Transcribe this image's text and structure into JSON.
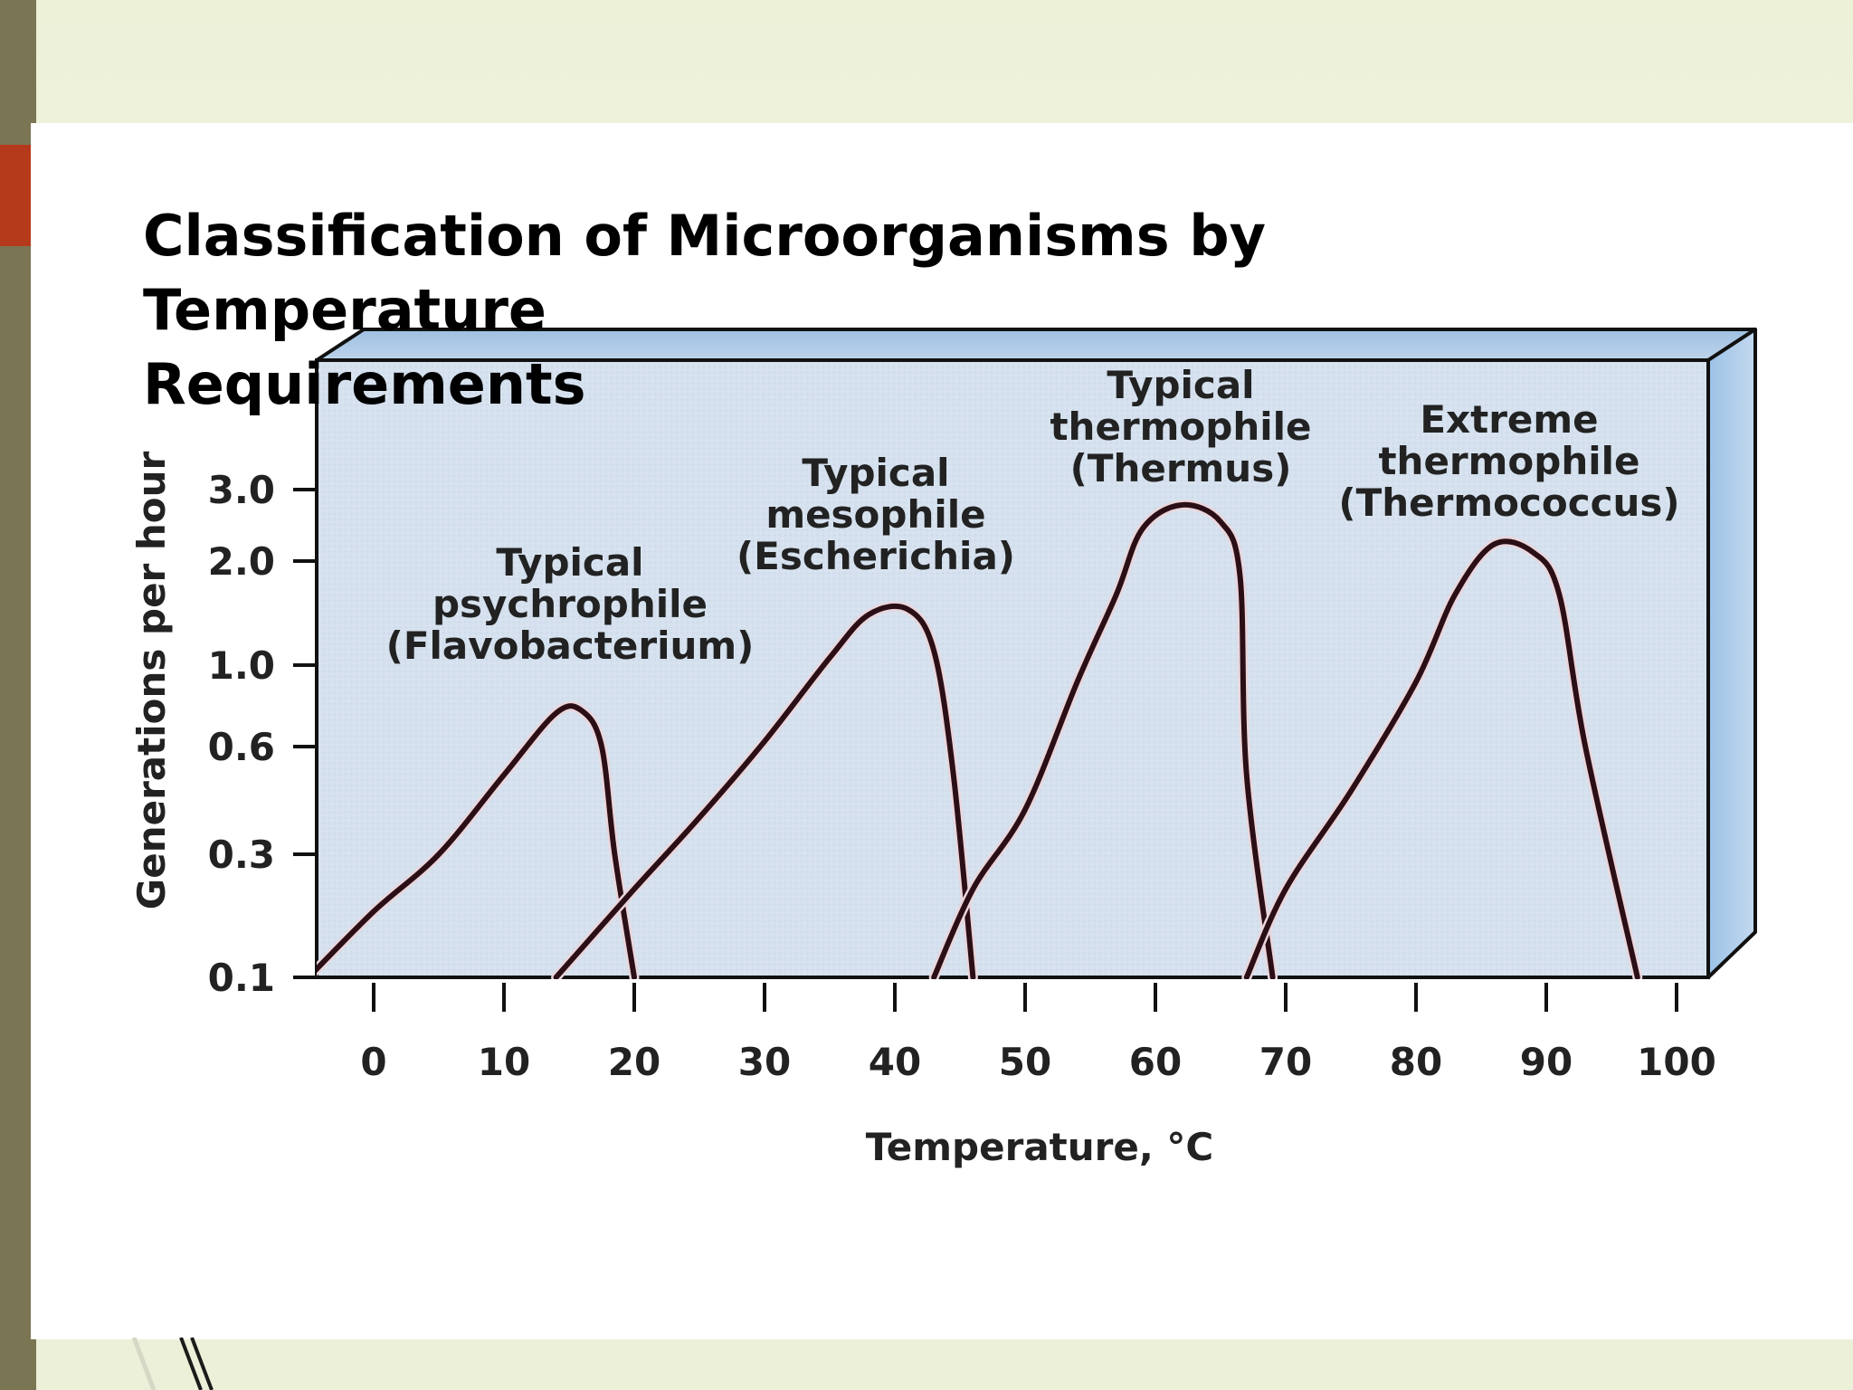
{
  "slide": {
    "title": "Classification of Microorganisms by Temperature\nRequirements"
  },
  "colors": {
    "background": "#edf1d8",
    "left_bar": "#7a7552",
    "accent_red": "#b53a1c",
    "panel_front": "#d3e0ee",
    "panel_top": "#a9c7e4",
    "panel_side": "#8fb6df",
    "curve": "#2b0f17"
  },
  "chart_data": {
    "type": "line",
    "title": "",
    "xlabel": "Temperature, °C",
    "ylabel": "Generations per hour",
    "x_ticks": [
      0,
      10,
      20,
      30,
      40,
      50,
      60,
      70,
      80,
      90,
      100
    ],
    "y_ticks": [
      "0.1",
      "0.3",
      "0.6",
      "1.0",
      "2.0",
      "3.0"
    ],
    "y_scale": "log",
    "xlim": [
      -5,
      103
    ],
    "ylim": [
      0.1,
      3.0
    ],
    "grid": false,
    "legend": "none",
    "series": [
      {
        "label": [
          "Typical",
          "psychrophile",
          "(Flavobacterium)"
        ],
        "points": [
          [
            -5,
            0.1
          ],
          [
            0,
            0.18
          ],
          [
            5,
            0.3
          ],
          [
            10,
            0.5
          ],
          [
            14,
            0.74
          ],
          [
            16,
            0.75
          ],
          [
            17.5,
            0.6
          ],
          [
            18.5,
            0.3
          ],
          [
            20,
            0.1
          ]
        ]
      },
      {
        "label": [
          "Typical",
          "mesophile",
          "(Escherichia)"
        ],
        "points": [
          [
            14,
            0.1
          ],
          [
            20,
            0.22
          ],
          [
            25,
            0.38
          ],
          [
            30,
            0.62
          ],
          [
            35,
            1.05
          ],
          [
            38,
            1.4
          ],
          [
            41,
            1.45
          ],
          [
            43,
            1.1
          ],
          [
            44.5,
            0.5
          ],
          [
            46,
            0.1
          ]
        ]
      },
      {
        "label": [
          "Typical",
          "thermophile",
          "(Thermus)"
        ],
        "points": [
          [
            43,
            0.1
          ],
          [
            46,
            0.22
          ],
          [
            50,
            0.4
          ],
          [
            54,
            0.9
          ],
          [
            57,
            1.6
          ],
          [
            59,
            2.4
          ],
          [
            62,
            2.75
          ],
          [
            65,
            2.5
          ],
          [
            66.5,
            1.8
          ],
          [
            67,
            0.5
          ],
          [
            69,
            0.1
          ]
        ]
      },
      {
        "label": [
          "Extreme",
          "thermophile",
          "(Thermococcus)"
        ],
        "points": [
          [
            67,
            0.1
          ],
          [
            70,
            0.22
          ],
          [
            75,
            0.45
          ],
          [
            80,
            0.9
          ],
          [
            83,
            1.6
          ],
          [
            86,
            2.2
          ],
          [
            89,
            2.1
          ],
          [
            91,
            1.6
          ],
          [
            93,
            0.6
          ],
          [
            97,
            0.1
          ]
        ]
      }
    ]
  }
}
